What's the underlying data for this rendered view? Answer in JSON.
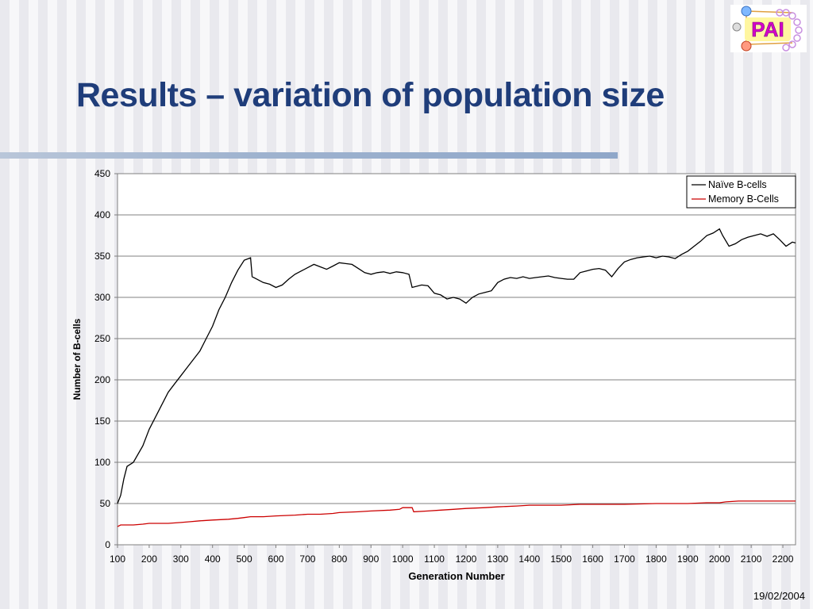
{
  "slide": {
    "title": "Results – variation of population size",
    "date": "19/02/2004",
    "logo_text": "PAI"
  },
  "colors": {
    "title": "#1f3d7a",
    "naive": "#000000",
    "memory": "#cc0000",
    "logo_text": "#d400c8"
  },
  "chart_data": {
    "type": "line",
    "xlabel": "Generation Number",
    "ylabel": "Number of B-cells",
    "xlim": [
      100,
      2240
    ],
    "ylim": [
      0,
      450
    ],
    "x_ticks": [
      100,
      200,
      300,
      400,
      500,
      600,
      700,
      800,
      900,
      1000,
      1100,
      1200,
      1300,
      1400,
      1500,
      1600,
      1700,
      1800,
      1900,
      2000,
      2100,
      2200
    ],
    "y_ticks": [
      0,
      50,
      100,
      150,
      200,
      250,
      300,
      350,
      400,
      450
    ],
    "grid": "horizontal",
    "legend_position": "top-right",
    "series": [
      {
        "name": "Naïve B-cells",
        "color": "#000000",
        "points": [
          [
            100,
            50
          ],
          [
            110,
            60
          ],
          [
            120,
            80
          ],
          [
            130,
            95
          ],
          [
            150,
            100
          ],
          [
            180,
            120
          ],
          [
            200,
            140
          ],
          [
            220,
            155
          ],
          [
            240,
            170
          ],
          [
            260,
            185
          ],
          [
            280,
            195
          ],
          [
            300,
            205
          ],
          [
            320,
            215
          ],
          [
            340,
            225
          ],
          [
            360,
            235
          ],
          [
            380,
            250
          ],
          [
            400,
            265
          ],
          [
            420,
            285
          ],
          [
            440,
            300
          ],
          [
            460,
            318
          ],
          [
            480,
            333
          ],
          [
            500,
            345
          ],
          [
            520,
            348
          ],
          [
            525,
            325
          ],
          [
            540,
            322
          ],
          [
            560,
            318
          ],
          [
            580,
            316
          ],
          [
            600,
            312
          ],
          [
            620,
            315
          ],
          [
            640,
            322
          ],
          [
            660,
            328
          ],
          [
            680,
            332
          ],
          [
            700,
            336
          ],
          [
            720,
            340
          ],
          [
            740,
            337
          ],
          [
            760,
            334
          ],
          [
            780,
            338
          ],
          [
            800,
            342
          ],
          [
            820,
            341
          ],
          [
            840,
            340
          ],
          [
            860,
            335
          ],
          [
            880,
            330
          ],
          [
            900,
            328
          ],
          [
            920,
            330
          ],
          [
            940,
            331
          ],
          [
            960,
            329
          ],
          [
            980,
            331
          ],
          [
            1000,
            330
          ],
          [
            1020,
            328
          ],
          [
            1030,
            312
          ],
          [
            1060,
            315
          ],
          [
            1080,
            314
          ],
          [
            1100,
            305
          ],
          [
            1120,
            303
          ],
          [
            1140,
            298
          ],
          [
            1160,
            300
          ],
          [
            1180,
            298
          ],
          [
            1200,
            293
          ],
          [
            1220,
            300
          ],
          [
            1240,
            304
          ],
          [
            1260,
            306
          ],
          [
            1280,
            308
          ],
          [
            1300,
            318
          ],
          [
            1320,
            322
          ],
          [
            1340,
            324
          ],
          [
            1360,
            323
          ],
          [
            1380,
            325
          ],
          [
            1400,
            323
          ],
          [
            1420,
            324
          ],
          [
            1440,
            325
          ],
          [
            1460,
            326
          ],
          [
            1480,
            324
          ],
          [
            1500,
            323
          ],
          [
            1520,
            322
          ],
          [
            1540,
            322
          ],
          [
            1560,
            330
          ],
          [
            1580,
            332
          ],
          [
            1600,
            334
          ],
          [
            1620,
            335
          ],
          [
            1640,
            333
          ],
          [
            1660,
            325
          ],
          [
            1680,
            335
          ],
          [
            1700,
            343
          ],
          [
            1720,
            346
          ],
          [
            1740,
            348
          ],
          [
            1760,
            349
          ],
          [
            1780,
            350
          ],
          [
            1800,
            348
          ],
          [
            1820,
            350
          ],
          [
            1840,
            349
          ],
          [
            1860,
            347
          ],
          [
            1880,
            352
          ],
          [
            1900,
            356
          ],
          [
            1920,
            362
          ],
          [
            1940,
            368
          ],
          [
            1960,
            375
          ],
          [
            1980,
            378
          ],
          [
            2000,
            383
          ],
          [
            2010,
            375
          ],
          [
            2030,
            362
          ],
          [
            2050,
            365
          ],
          [
            2070,
            370
          ],
          [
            2090,
            373
          ],
          [
            2110,
            375
          ],
          [
            2130,
            377
          ],
          [
            2150,
            374
          ],
          [
            2170,
            377
          ],
          [
            2190,
            370
          ],
          [
            2210,
            362
          ],
          [
            2230,
            367
          ],
          [
            2240,
            366
          ]
        ]
      },
      {
        "name": "Memory B-Cells",
        "color": "#cc0000",
        "points": [
          [
            100,
            22
          ],
          [
            110,
            24
          ],
          [
            150,
            24
          ],
          [
            180,
            25
          ],
          [
            200,
            26
          ],
          [
            260,
            26
          ],
          [
            300,
            27
          ],
          [
            330,
            28
          ],
          [
            360,
            29
          ],
          [
            400,
            30
          ],
          [
            450,
            31
          ],
          [
            480,
            32
          ],
          [
            500,
            33
          ],
          [
            520,
            34
          ],
          [
            560,
            34
          ],
          [
            600,
            35
          ],
          [
            660,
            36
          ],
          [
            700,
            37
          ],
          [
            740,
            37
          ],
          [
            780,
            38
          ],
          [
            800,
            39
          ],
          [
            860,
            40
          ],
          [
            900,
            41
          ],
          [
            960,
            42
          ],
          [
            990,
            43
          ],
          [
            1000,
            45
          ],
          [
            1030,
            45
          ],
          [
            1035,
            40
          ],
          [
            1080,
            41
          ],
          [
            1120,
            42
          ],
          [
            1160,
            43
          ],
          [
            1200,
            44
          ],
          [
            1260,
            45
          ],
          [
            1300,
            46
          ],
          [
            1360,
            47
          ],
          [
            1400,
            48
          ],
          [
            1500,
            48
          ],
          [
            1560,
            49
          ],
          [
            1700,
            49
          ],
          [
            1800,
            50
          ],
          [
            1900,
            50
          ],
          [
            1960,
            51
          ],
          [
            2000,
            51
          ],
          [
            2020,
            52
          ],
          [
            2060,
            53
          ],
          [
            2240,
            53
          ]
        ]
      }
    ]
  }
}
